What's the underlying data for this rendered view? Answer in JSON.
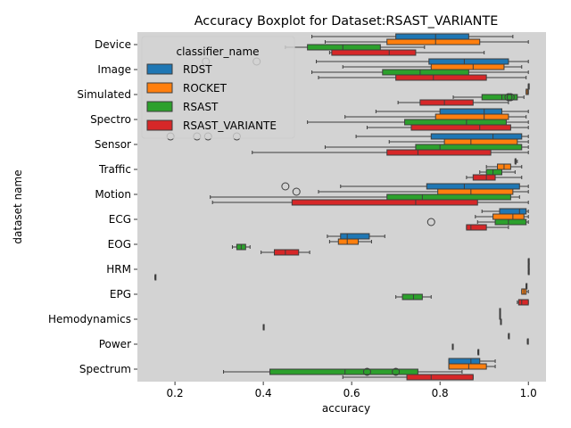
{
  "chart_data": {
    "type": "boxplot",
    "title": "Accuracy Boxplot for Dataset:RSAST_VARIANTE",
    "xlabel": "accuracy",
    "ylabel": "dataset name",
    "xlim": [
      0.115,
      1.04
    ],
    "xticks": [
      "0.2",
      "0.4",
      "0.6",
      "0.8",
      "1.0"
    ],
    "grid": false,
    "legend": {
      "title": "classifier_name",
      "placement": "upper-left"
    },
    "categories": [
      "Device",
      "Image",
      "Simulated",
      "Spectro",
      "Sensor",
      "Traffic",
      "Motion",
      "ECG",
      "EOG",
      "HRM",
      "EPG",
      "Hemodynamics",
      "Power",
      "Spectrum"
    ],
    "series": [
      {
        "name": "RDST",
        "color": "#1f77b4",
        "boxes": [
          [
            0.51,
            0.7,
            0.79,
            0.865,
            0.965,
            []
          ],
          [
            0.52,
            0.775,
            0.855,
            0.955,
            1.0,
            [
              0.27,
              0.385
            ]
          ],
          [
            1.0,
            1.0,
            1.0,
            1.0,
            1.0,
            []
          ],
          [
            0.655,
            0.8,
            0.9,
            0.94,
            1.0,
            []
          ],
          [
            0.61,
            0.78,
            0.92,
            0.985,
            1.0,
            [
              0.19,
              0.25,
              0.275,
              0.34
            ]
          ],
          [
            0.97,
            0.97,
            0.97,
            0.97,
            0.975,
            []
          ],
          [
            0.575,
            0.77,
            0.855,
            0.98,
            1.0,
            [
              0.45
            ]
          ],
          [
            0.895,
            0.935,
            0.98,
            0.995,
            1.0,
            []
          ],
          [
            0.545,
            0.575,
            0.59,
            0.64,
            0.675,
            []
          ],
          [
            1.0,
            1.0,
            1.0,
            1.0,
            1.0,
            []
          ],
          [
            0.995,
            0.995,
            0.995,
            0.995,
            0.995,
            []
          ],
          [
            0.935,
            0.935,
            0.935,
            0.935,
            0.935,
            []
          ],
          [
            0.955,
            0.955,
            0.955,
            0.955,
            0.955,
            []
          ],
          [
            0.82,
            0.82,
            0.87,
            0.89,
            0.925,
            []
          ]
        ]
      },
      {
        "name": "ROCKET",
        "color": "#ff7f0e",
        "boxes": [
          [
            0.54,
            0.68,
            0.79,
            0.89,
            1.0,
            []
          ],
          [
            0.58,
            0.78,
            0.875,
            0.945,
            0.985,
            []
          ],
          [
            0.995,
            0.995,
            0.998,
            1.0,
            1.0,
            []
          ],
          [
            0.585,
            0.79,
            0.9,
            0.955,
            0.995,
            []
          ],
          [
            0.685,
            0.81,
            0.87,
            0.975,
            1.0,
            []
          ],
          [
            0.905,
            0.93,
            0.945,
            0.96,
            0.985,
            []
          ],
          [
            0.525,
            0.795,
            0.87,
            0.965,
            1.0,
            [
              0.475
            ]
          ],
          [
            0.88,
            0.92,
            0.965,
            0.99,
            1.0,
            []
          ],
          [
            0.55,
            0.57,
            0.59,
            0.615,
            0.645,
            []
          ],
          [
            1.0,
            1.0,
            1.0,
            1.0,
            1.0,
            []
          ],
          [
            0.985,
            0.985,
            0.99,
            0.995,
            1.0,
            []
          ],
          [
            0.935,
            0.935,
            0.935,
            0.935,
            0.935,
            []
          ],
          [
            0.998,
            0.998,
            0.998,
            0.998,
            0.998,
            []
          ],
          [
            0.82,
            0.82,
            0.865,
            0.905,
            0.925,
            []
          ]
        ]
      },
      {
        "name": "RSAST",
        "color": "#2ca02c",
        "boxes": [
          [
            0.45,
            0.5,
            0.58,
            0.665,
            0.765,
            []
          ],
          [
            0.51,
            0.67,
            0.755,
            0.865,
            1.0,
            []
          ],
          [
            0.83,
            0.895,
            0.94,
            0.975,
            0.99,
            [
              0.955,
              0.96
            ]
          ],
          [
            0.5,
            0.72,
            0.86,
            0.95,
            1.0,
            []
          ],
          [
            0.54,
            0.745,
            0.8,
            0.985,
            1.0,
            []
          ],
          [
            0.89,
            0.905,
            0.92,
            0.94,
            0.97,
            []
          ],
          [
            0.28,
            0.68,
            0.76,
            0.96,
            0.98,
            []
          ],
          [
            0.885,
            0.925,
            0.955,
            0.995,
            1.0,
            [
              0.78
            ]
          ],
          [
            0.33,
            0.34,
            0.35,
            0.36,
            0.37,
            []
          ],
          [
            1.0,
            1.0,
            1.0,
            1.0,
            1.0,
            []
          ],
          [
            0.7,
            0.715,
            0.74,
            0.76,
            0.78,
            []
          ],
          [
            0.937,
            0.937,
            0.937,
            0.937,
            0.937,
            []
          ],
          [
            0.828,
            0.828,
            0.828,
            0.828,
            0.828,
            []
          ],
          [
            0.31,
            0.415,
            0.585,
            0.75,
            0.85,
            [
              0.635,
              0.7
            ]
          ]
        ]
      },
      {
        "name": "RSAST_VARIANTE",
        "color": "#d62728",
        "boxes": [
          [
            0.55,
            0.555,
            0.685,
            0.745,
            0.9,
            []
          ],
          [
            0.525,
            0.7,
            0.785,
            0.905,
            0.995,
            []
          ],
          [
            0.705,
            0.755,
            0.81,
            0.875,
            0.955,
            []
          ],
          [
            0.635,
            0.735,
            0.89,
            0.96,
            1.0,
            []
          ],
          [
            0.375,
            0.68,
            0.75,
            0.915,
            1.0,
            []
          ],
          [
            0.86,
            0.875,
            0.905,
            0.925,
            0.985,
            []
          ],
          [
            0.285,
            0.465,
            0.745,
            0.885,
            1.0,
            []
          ],
          [
            0.86,
            0.86,
            0.87,
            0.905,
            0.955,
            []
          ],
          [
            0.395,
            0.425,
            0.45,
            0.48,
            0.505,
            []
          ],
          [
            0.155,
            0.155,
            0.155,
            0.155,
            0.155,
            []
          ],
          [
            0.975,
            0.978,
            0.985,
            1.0,
            1.0,
            []
          ],
          [
            0.4,
            0.4,
            0.4,
            0.4,
            0.4,
            []
          ],
          [
            0.886,
            0.886,
            0.886,
            0.886,
            0.886,
            []
          ],
          [
            0.58,
            0.725,
            0.78,
            0.875,
            0.875,
            []
          ]
        ]
      }
    ]
  }
}
